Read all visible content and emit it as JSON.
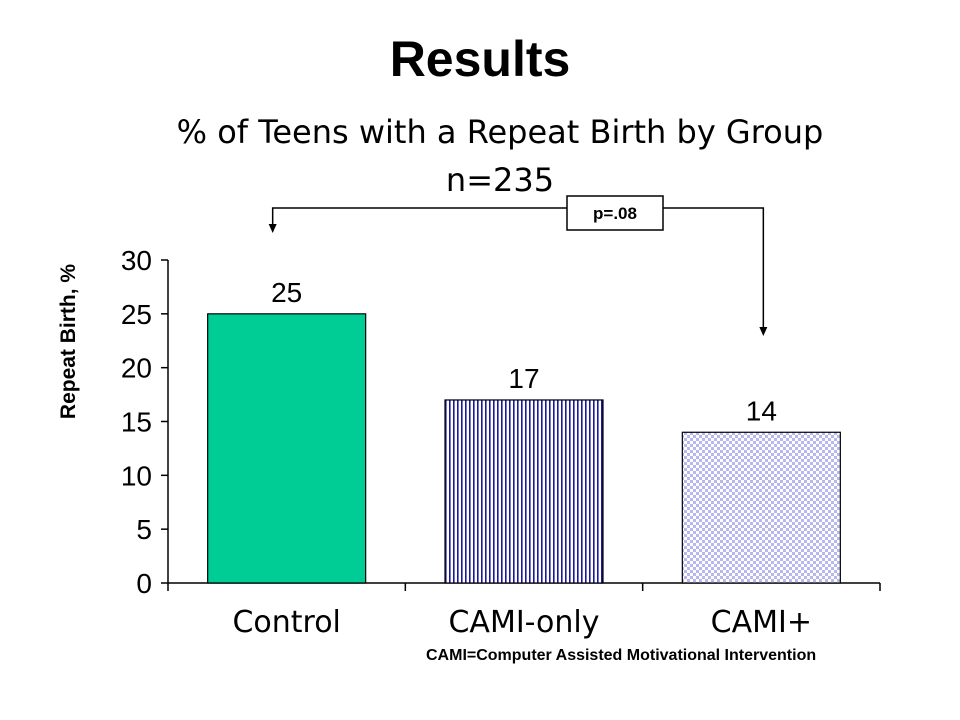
{
  "slide": {
    "title": "Results",
    "footnote": "CAMI=Computer Assisted Motivational Intervention"
  },
  "chart_data": {
    "type": "bar",
    "title": "% of Teens with a Repeat Birth by Group",
    "subtitle": "n=235",
    "xlabel": "",
    "ylabel": "Repeat Birth, %",
    "categories": [
      "Control",
      "CAMI-only",
      "CAMI+"
    ],
    "values": [
      25,
      17,
      14
    ],
    "data_labels": [
      "25",
      "17",
      "14"
    ],
    "ylim": [
      0,
      30
    ],
    "yticks": [
      0,
      5,
      10,
      15,
      20,
      25,
      30
    ],
    "grid": false,
    "legend": "none",
    "bar_styles": [
      {
        "fill": "#00cc96",
        "pattern": "solid"
      },
      {
        "fill": "#ffffff",
        "stroke": "#1a1aa0",
        "pattern": "vertical-lines"
      },
      {
        "fill": "#ffffff",
        "stroke": "#b8b8f0",
        "pattern": "diamond-checker"
      }
    ],
    "annotation": {
      "label": "p=.08",
      "from_category": "Control",
      "to_category": "CAMI+"
    }
  }
}
